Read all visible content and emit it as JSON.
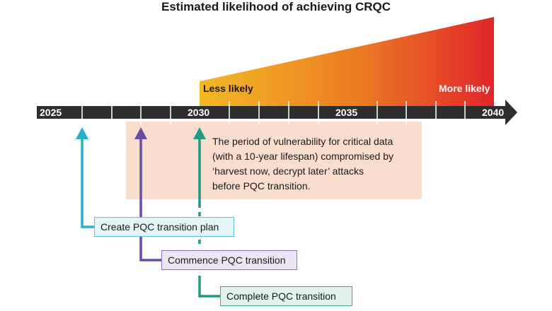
{
  "title": "Estimated likelihood of achieving CRQC",
  "timeline": {
    "year_labels": [
      "2025",
      "2030",
      "2035",
      "2040"
    ],
    "less_likely": "Less likely",
    "more_likely": "More likely"
  },
  "vulnerability_note": [
    "The period of vulnerability for critical data",
    "(with a 10-year lifespan) compromised by",
    "‘harvest now, decrypt later’ attacks",
    "before PQC transition."
  ],
  "milestones": {
    "create_plan": "Create PQC transition plan",
    "commence": "Commence PQC transition",
    "complete": "Complete PQC transition"
  },
  "colors": {
    "axis": "#2e2e2e",
    "likelihood_low": "#f2b824",
    "likelihood_high": "#e1262b",
    "shaded_period": "#f9decd",
    "create_plan": "#27b1c7",
    "commence": "#6a4ca4",
    "complete": "#1f9a83"
  }
}
